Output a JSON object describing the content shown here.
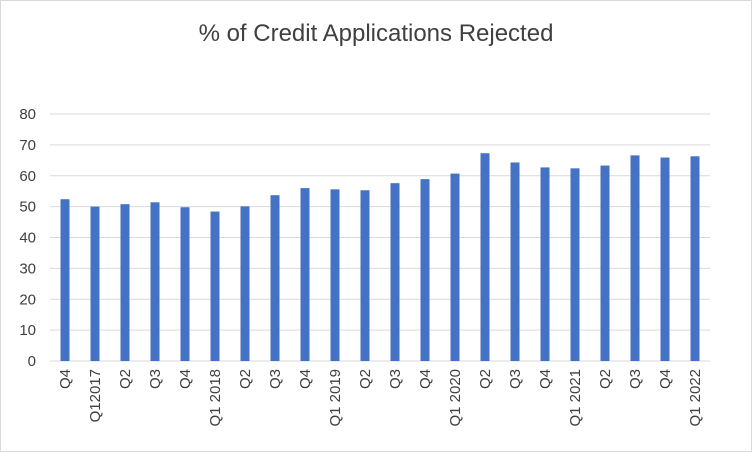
{
  "chart_data": {
    "type": "bar",
    "title": "% of Credit Applications Rejected",
    "categories": [
      "Q4",
      "Q12017",
      "Q2",
      "Q3",
      "Q4",
      "Q1 2018",
      "Q2",
      "Q3",
      "Q4",
      "Q1 2019",
      "Q2",
      "Q3",
      "Q4",
      "Q1 2020",
      "Q2",
      "Q3",
      "Q4",
      "Q1 2021",
      "Q2",
      "Q3",
      "Q4",
      "Q1 2022"
    ],
    "values": [
      52.4,
      50.0,
      50.8,
      51.4,
      49.8,
      48.4,
      50.1,
      53.7,
      56.0,
      55.6,
      55.3,
      57.6,
      58.9,
      60.7,
      67.3,
      64.3,
      62.7,
      62.4,
      63.3,
      66.6,
      65.9,
      66.3
    ],
    "ylim": [
      0,
      80
    ],
    "yticks": [
      "0",
      "10",
      "20",
      "30",
      "40",
      "50",
      "60",
      "70",
      "80"
    ],
    "grid": true,
    "xlabel": "",
    "ylabel": "",
    "colors": {
      "bar": "#4472C4",
      "grid": "#d9d9d9",
      "text": "#404040"
    }
  }
}
